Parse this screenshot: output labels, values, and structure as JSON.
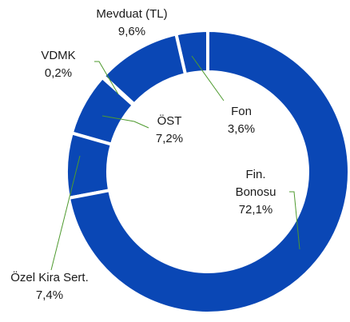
{
  "chart_data": {
    "type": "donut",
    "categories": [
      "Fin. Bonosu",
      "Özel Kira Sert.",
      "ÖST",
      "VDMK",
      "Mevduat (TL)",
      "Fon"
    ],
    "values": [
      72.1,
      7.4,
      7.2,
      0.2,
      9.6,
      3.6
    ],
    "value_labels": [
      "72,1%",
      "7,4%",
      "7,2%",
      "0,2%",
      "9,6%",
      "3,6%"
    ],
    "color": "#0a47b5"
  }
}
